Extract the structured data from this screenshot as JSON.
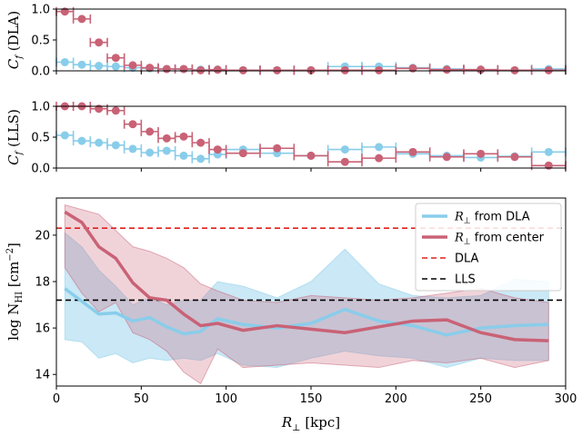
{
  "chart_data": [
    {
      "type": "scatter",
      "ylabel": "C_f (DLA)",
      "xlim": [
        0,
        300
      ],
      "ylim": [
        0,
        1
      ],
      "yticks": [
        "0.0",
        "0.5",
        "1.0"
      ],
      "grid": false,
      "series": [
        {
          "color": "#89cdea",
          "points": [
            {
              "x": 5,
              "y": 0.14,
              "xerr": 5
            },
            {
              "x": 15,
              "y": 0.1,
              "xerr": 5
            },
            {
              "x": 25,
              "y": 0.08,
              "xerr": 5
            },
            {
              "x": 35,
              "y": 0.07,
              "xerr": 5
            },
            {
              "x": 45,
              "y": 0.05,
              "xerr": 5
            },
            {
              "x": 55,
              "y": 0.04,
              "xerr": 5
            },
            {
              "x": 65,
              "y": 0.03,
              "xerr": 5
            },
            {
              "x": 75,
              "y": 0.03,
              "xerr": 5
            },
            {
              "x": 85,
              "y": 0.02,
              "xerr": 5
            },
            {
              "x": 95,
              "y": 0.02,
              "xerr": 5
            },
            {
              "x": 110,
              "y": 0.01,
              "xerr": 10
            },
            {
              "x": 130,
              "y": 0.01,
              "xerr": 10
            },
            {
              "x": 150,
              "y": 0.01,
              "xerr": 10
            },
            {
              "x": 170,
              "y": 0.07,
              "xerr": 10
            },
            {
              "x": 190,
              "y": 0.07,
              "xerr": 10
            },
            {
              "x": 210,
              "y": 0.05,
              "xerr": 10
            },
            {
              "x": 230,
              "y": 0.03,
              "xerr": 10
            },
            {
              "x": 250,
              "y": 0.02,
              "xerr": 10
            },
            {
              "x": 270,
              "y": 0.01,
              "xerr": 10
            },
            {
              "x": 290,
              "y": 0.03,
              "xerr": 10
            }
          ]
        },
        {
          "color": "#c96276",
          "points": [
            {
              "x": 5,
              "y": 0.96,
              "xerr": 5
            },
            {
              "x": 15,
              "y": 0.84,
              "xerr": 5
            },
            {
              "x": 25,
              "y": 0.46,
              "xerr": 5
            },
            {
              "x": 35,
              "y": 0.21,
              "xerr": 5
            },
            {
              "x": 45,
              "y": 0.09,
              "xerr": 5
            },
            {
              "x": 55,
              "y": 0.05,
              "xerr": 5
            },
            {
              "x": 65,
              "y": 0.03,
              "xerr": 5
            },
            {
              "x": 75,
              "y": 0.03,
              "xerr": 5
            },
            {
              "x": 85,
              "y": 0.01,
              "xerr": 5
            },
            {
              "x": 95,
              "y": 0.02,
              "xerr": 5
            },
            {
              "x": 110,
              "y": 0.01,
              "xerr": 10
            },
            {
              "x": 130,
              "y": 0.01,
              "xerr": 10
            },
            {
              "x": 150,
              "y": 0.01,
              "xerr": 10
            },
            {
              "x": 170,
              "y": 0.01,
              "xerr": 10
            },
            {
              "x": 190,
              "y": 0.01,
              "xerr": 10
            },
            {
              "x": 210,
              "y": 0.04,
              "xerr": 10
            },
            {
              "x": 230,
              "y": 0.02,
              "xerr": 10
            },
            {
              "x": 250,
              "y": 0.02,
              "xerr": 10
            },
            {
              "x": 270,
              "y": 0.01,
              "xerr": 10
            },
            {
              "x": 290,
              "y": 0.01,
              "xerr": 10
            }
          ]
        }
      ]
    },
    {
      "type": "scatter",
      "ylabel": "C_f (LLS)",
      "xlim": [
        0,
        300
      ],
      "ylim": [
        0,
        1
      ],
      "yticks": [
        "0.0",
        "0.5",
        "1.0"
      ],
      "grid": false,
      "series": [
        {
          "color": "#89cdea",
          "points": [
            {
              "x": 5,
              "y": 0.53,
              "xerr": 5
            },
            {
              "x": 15,
              "y": 0.44,
              "xerr": 5
            },
            {
              "x": 25,
              "y": 0.41,
              "xerr": 5
            },
            {
              "x": 35,
              "y": 0.37,
              "xerr": 5
            },
            {
              "x": 45,
              "y": 0.31,
              "xerr": 5
            },
            {
              "x": 55,
              "y": 0.25,
              "xerr": 5
            },
            {
              "x": 65,
              "y": 0.28,
              "xerr": 5
            },
            {
              "x": 75,
              "y": 0.2,
              "xerr": 5
            },
            {
              "x": 85,
              "y": 0.15,
              "xerr": 5
            },
            {
              "x": 95,
              "y": 0.22,
              "xerr": 5
            },
            {
              "x": 110,
              "y": 0.3,
              "xerr": 10
            },
            {
              "x": 130,
              "y": 0.24,
              "xerr": 10
            },
            {
              "x": 150,
              "y": 0.2,
              "xerr": 10
            },
            {
              "x": 170,
              "y": 0.3,
              "xerr": 10
            },
            {
              "x": 190,
              "y": 0.34,
              "xerr": 10
            },
            {
              "x": 210,
              "y": 0.23,
              "xerr": 10
            },
            {
              "x": 230,
              "y": 0.2,
              "xerr": 10
            },
            {
              "x": 250,
              "y": 0.17,
              "xerr": 10
            },
            {
              "x": 270,
              "y": 0.19,
              "xerr": 10
            },
            {
              "x": 290,
              "y": 0.26,
              "xerr": 10
            }
          ]
        },
        {
          "color": "#c96276",
          "points": [
            {
              "x": 5,
              "y": 1.0,
              "xerr": 5
            },
            {
              "x": 15,
              "y": 1.0,
              "xerr": 5
            },
            {
              "x": 25,
              "y": 0.96,
              "xerr": 5
            },
            {
              "x": 35,
              "y": 0.93,
              "xerr": 5
            },
            {
              "x": 45,
              "y": 0.71,
              "xerr": 5
            },
            {
              "x": 55,
              "y": 0.59,
              "xerr": 5
            },
            {
              "x": 65,
              "y": 0.48,
              "xerr": 5
            },
            {
              "x": 75,
              "y": 0.51,
              "xerr": 5
            },
            {
              "x": 85,
              "y": 0.41,
              "xerr": 5
            },
            {
              "x": 95,
              "y": 0.3,
              "xerr": 5
            },
            {
              "x": 110,
              "y": 0.24,
              "xerr": 10
            },
            {
              "x": 130,
              "y": 0.32,
              "xerr": 10
            },
            {
              "x": 150,
              "y": 0.2,
              "xerr": 10
            },
            {
              "x": 170,
              "y": 0.1,
              "xerr": 10
            },
            {
              "x": 190,
              "y": 0.16,
              "xerr": 10
            },
            {
              "x": 210,
              "y": 0.26,
              "xerr": 10
            },
            {
              "x": 230,
              "y": 0.18,
              "xerr": 10
            },
            {
              "x": 250,
              "y": 0.23,
              "xerr": 10
            },
            {
              "x": 270,
              "y": 0.18,
              "xerr": 10
            },
            {
              "x": 290,
              "y": 0.04,
              "xerr": 10
            }
          ]
        }
      ]
    },
    {
      "type": "line",
      "ylabel": "log N_HI [cm^-2]",
      "xlabel": "R_⊥ [kpc]",
      "xlim": [
        0,
        300
      ],
      "ylim": [
        13.5,
        21.6
      ],
      "xticks": [
        "0",
        "50",
        "100",
        "150",
        "200",
        "250",
        "300"
      ],
      "yticks": [
        "14",
        "16",
        "18",
        "20"
      ],
      "grid": false,
      "legend_position": "top-right",
      "x": [
        5,
        15,
        25,
        35,
        45,
        55,
        65,
        75,
        85,
        95,
        110,
        130,
        150,
        170,
        190,
        210,
        230,
        250,
        270,
        290
      ],
      "series": [
        {
          "name": "R_⊥ from DLA",
          "color": "#89cdea",
          "y": [
            17.7,
            17.15,
            16.6,
            16.65,
            16.3,
            16.45,
            16.05,
            15.75,
            15.85,
            16.4,
            16.15,
            16.0,
            16.2,
            16.8,
            16.3,
            16.1,
            15.7,
            16.0,
            16.1,
            16.15
          ],
          "lower": [
            15.5,
            15.4,
            14.7,
            14.9,
            14.5,
            14.7,
            14.6,
            14.7,
            14.6,
            14.9,
            14.4,
            14.3,
            14.7,
            15.0,
            14.8,
            14.7,
            14.3,
            14.7,
            14.6,
            14.6
          ],
          "upper": [
            20.1,
            19.5,
            18.5,
            17.8,
            17.0,
            17.3,
            17.0,
            17.2,
            17.2,
            18.0,
            17.8,
            17.3,
            18.0,
            19.4,
            17.9,
            17.4,
            17.3,
            17.4,
            18.1,
            18.0
          ]
        },
        {
          "name": "R_⊥ from center",
          "color": "#c96276",
          "y": [
            21.0,
            20.55,
            19.5,
            19.0,
            17.95,
            17.3,
            17.2,
            16.6,
            16.1,
            16.2,
            15.9,
            16.1,
            15.95,
            15.8,
            16.05,
            16.3,
            16.35,
            15.8,
            15.5,
            15.45
          ],
          "lower": [
            18.6,
            17.5,
            16.7,
            17.1,
            15.8,
            15.5,
            15.0,
            14.1,
            13.6,
            15.1,
            14.3,
            14.4,
            14.5,
            14.4,
            14.3,
            14.6,
            14.5,
            14.7,
            14.3,
            14.6
          ],
          "upper": [
            21.3,
            21.1,
            20.9,
            20.2,
            19.5,
            19.3,
            19.0,
            18.6,
            17.9,
            17.6,
            17.2,
            17.1,
            17.4,
            17.3,
            17.2,
            17.3,
            17.5,
            17.7,
            17.3,
            17.1
          ]
        }
      ],
      "reference_lines": [
        {
          "name": "DLA",
          "y": 20.3,
          "color": "#e0201b",
          "style": "dashed"
        },
        {
          "name": "LLS",
          "y": 17.2,
          "color": "#000000",
          "style": "dashed"
        }
      ]
    }
  ],
  "labels": {
    "cf_var": "C",
    "cf_sub": "f",
    "panel1_tag": " (DLA)",
    "panel2_tag": " (LLS)",
    "log_word": "log N",
    "log_sub": "HI",
    "log_unit": " [cm",
    "log_exp": "−2",
    "log_close": "]",
    "x_var": "R",
    "x_sub": "⊥",
    "x_unit": " [kpc]",
    "legend": [
      {
        "var": "R",
        "sub": "⊥",
        "rest": " from DLA"
      },
      {
        "var": "R",
        "sub": "⊥",
        "rest": " from center"
      },
      {
        "var": "",
        "sub": "",
        "rest": "DLA"
      },
      {
        "var": "",
        "sub": "",
        "rest": "LLS"
      }
    ]
  }
}
